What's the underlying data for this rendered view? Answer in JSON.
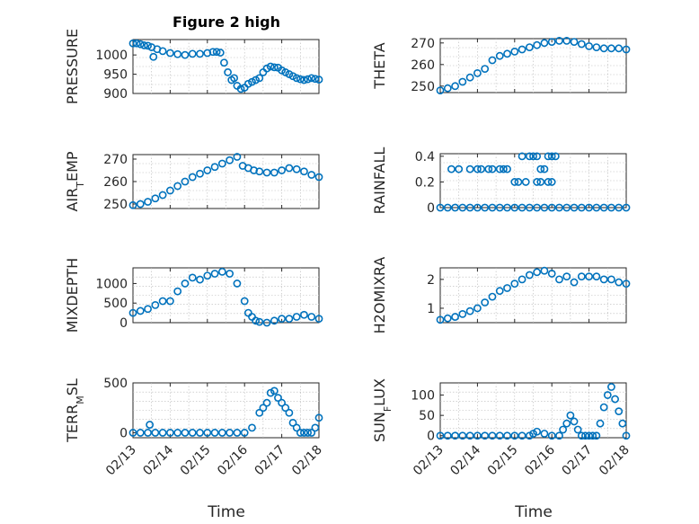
{
  "figure": {
    "title": "Figure 2 high",
    "xlabel": "Time",
    "xtick_labels": [
      "02/13",
      "02/14",
      "02/15",
      "02/16",
      "02/17",
      "02/18"
    ],
    "marker_color": "#0072BD",
    "background": "#ffffff"
  },
  "chart_data": [
    {
      "type": "scatter",
      "id": "pressure",
      "ylabel": "PRESSURE",
      "ylabel_parts": [
        {
          "t": "PRESSURE"
        }
      ],
      "ylim": [
        900,
        1040
      ],
      "yticks": [
        900,
        950,
        1000
      ],
      "xlim": [
        0,
        5
      ],
      "grid": true,
      "x": [
        0.0,
        0.1,
        0.2,
        0.3,
        0.4,
        0.5,
        0.55,
        0.65,
        0.8,
        1.0,
        1.2,
        1.4,
        1.6,
        1.8,
        2.0,
        2.15,
        2.25,
        2.35,
        2.45,
        2.55,
        2.65,
        2.72,
        2.8,
        2.9,
        3.0,
        3.1,
        3.2,
        3.3,
        3.4,
        3.5,
        3.6,
        3.7,
        3.8,
        3.9,
        4.0,
        4.1,
        4.2,
        4.3,
        4.4,
        4.5,
        4.6,
        4.7,
        4.8,
        4.9,
        5.0
      ],
      "y": [
        1030,
        1030,
        1028,
        1025,
        1024,
        1020,
        995,
        1015,
        1010,
        1005,
        1002,
        1000,
        1003,
        1003,
        1005,
        1008,
        1008,
        1006,
        980,
        955,
        935,
        940,
        920,
        912,
        915,
        925,
        930,
        935,
        940,
        955,
        965,
        970,
        968,
        967,
        960,
        955,
        950,
        945,
        940,
        937,
        935,
        937,
        940,
        938,
        936
      ]
    },
    {
      "type": "scatter",
      "id": "theta",
      "ylabel": "THETA",
      "ylabel_parts": [
        {
          "t": "THETA"
        }
      ],
      "ylim": [
        247,
        272
      ],
      "yticks": [
        250,
        260,
        270
      ],
      "xlim": [
        0,
        5
      ],
      "grid": true,
      "x": [
        0.0,
        0.2,
        0.4,
        0.6,
        0.8,
        1.0,
        1.2,
        1.4,
        1.6,
        1.8,
        2.0,
        2.2,
        2.4,
        2.6,
        2.8,
        3.0,
        3.2,
        3.4,
        3.6,
        3.8,
        4.0,
        4.2,
        4.4,
        4.6,
        4.8,
        5.0
      ],
      "y": [
        248,
        249,
        250,
        252,
        254,
        256,
        258,
        262,
        264,
        265,
        266,
        267,
        268,
        269,
        270,
        270.5,
        271,
        271,
        270.5,
        269.5,
        268.5,
        268,
        267.5,
        267.5,
        267.5,
        267
      ]
    },
    {
      "type": "scatter",
      "id": "airtemp",
      "ylabel": "AIR_TEMP",
      "ylabel_parts": [
        {
          "t": "AIR"
        },
        {
          "t": "T",
          "sub": true
        },
        {
          "t": "EMP"
        }
      ],
      "ylim": [
        248,
        272
      ],
      "yticks": [
        250,
        260,
        270
      ],
      "xlim": [
        0,
        5
      ],
      "grid": true,
      "x": [
        0.0,
        0.2,
        0.4,
        0.6,
        0.8,
        1.0,
        1.2,
        1.4,
        1.6,
        1.8,
        2.0,
        2.2,
        2.4,
        2.6,
        2.8,
        2.95,
        3.1,
        3.25,
        3.4,
        3.6,
        3.8,
        4.0,
        4.2,
        4.4,
        4.6,
        4.8,
        5.0
      ],
      "y": [
        249.5,
        250,
        251,
        252.5,
        254,
        256,
        258,
        260,
        262,
        263.5,
        265,
        266.5,
        268,
        269.5,
        271,
        267,
        266,
        265,
        264.5,
        264,
        264,
        265,
        266,
        265.5,
        264.5,
        263,
        262
      ]
    },
    {
      "type": "scatter",
      "id": "rainfall",
      "ylabel": "RAINFALL",
      "ylabel_parts": [
        {
          "t": "RAINFALL"
        }
      ],
      "ylim": [
        0,
        0.42
      ],
      "yticks": [
        0,
        0.2,
        0.4
      ],
      "xlim": [
        0,
        5
      ],
      "grid": true,
      "x": [
        0.0,
        0.2,
        0.4,
        0.6,
        0.8,
        1.0,
        1.2,
        1.4,
        1.6,
        1.8,
        2.0,
        2.2,
        2.4,
        2.6,
        2.8,
        3.0,
        3.2,
        3.4,
        3.6,
        3.8,
        4.0,
        4.2,
        4.4,
        4.6,
        4.8,
        5.0,
        0.3,
        0.5,
        0.8,
        1.0,
        1.1,
        1.3,
        1.4,
        1.6,
        1.7,
        1.8,
        2.0,
        2.1,
        2.3,
        2.6,
        2.7,
        2.9,
        3.0,
        2.2,
        2.4,
        2.5,
        2.6,
        2.7,
        2.8,
        2.9,
        3.0,
        3.1
      ],
      "y": [
        0,
        0,
        0,
        0,
        0,
        0,
        0,
        0,
        0,
        0,
        0,
        0,
        0,
        0,
        0,
        0,
        0,
        0,
        0,
        0,
        0,
        0,
        0,
        0,
        0,
        0,
        0.3,
        0.3,
        0.3,
        0.3,
        0.3,
        0.3,
        0.3,
        0.3,
        0.3,
        0.3,
        0.2,
        0.2,
        0.2,
        0.2,
        0.2,
        0.2,
        0.2,
        0.4,
        0.4,
        0.4,
        0.4,
        0.3,
        0.3,
        0.4,
        0.4,
        0.4
      ]
    },
    {
      "type": "scatter",
      "id": "mixdepth",
      "ylabel": "MIXDEPTH",
      "ylabel_parts": [
        {
          "t": "MIXDEPTH"
        }
      ],
      "ylim": [
        0,
        1400
      ],
      "yticks": [
        0,
        500,
        1000
      ],
      "xlim": [
        0,
        5
      ],
      "grid": true,
      "x": [
        0.0,
        0.2,
        0.4,
        0.6,
        0.8,
        1.0,
        1.2,
        1.4,
        1.6,
        1.8,
        2.0,
        2.2,
        2.4,
        2.6,
        2.8,
        3.0,
        3.1,
        3.2,
        3.3,
        3.4,
        3.6,
        3.8,
        4.0,
        4.2,
        4.4,
        4.6,
        4.8,
        5.0
      ],
      "y": [
        250,
        300,
        350,
        450,
        550,
        550,
        800,
        1000,
        1150,
        1100,
        1200,
        1250,
        1300,
        1250,
        1000,
        550,
        250,
        150,
        50,
        20,
        0,
        50,
        100,
        100,
        150,
        200,
        150,
        100
      ]
    },
    {
      "type": "scatter",
      "id": "h2omixra",
      "ylabel": "H2OMIXRA",
      "ylabel_parts": [
        {
          "t": "H2OMIXRA"
        }
      ],
      "ylim": [
        0.5,
        2.4
      ],
      "yticks": [
        1,
        2
      ],
      "xlim": [
        0,
        5
      ],
      "grid": true,
      "x": [
        0.0,
        0.2,
        0.4,
        0.6,
        0.8,
        1.0,
        1.2,
        1.4,
        1.6,
        1.8,
        2.0,
        2.2,
        2.4,
        2.6,
        2.8,
        3.0,
        3.2,
        3.4,
        3.6,
        3.8,
        4.0,
        4.2,
        4.4,
        4.6,
        4.8,
        5.0
      ],
      "y": [
        0.6,
        0.65,
        0.7,
        0.8,
        0.9,
        1.0,
        1.2,
        1.4,
        1.6,
        1.7,
        1.85,
        2.0,
        2.15,
        2.25,
        2.3,
        2.2,
        2.0,
        2.1,
        1.9,
        2.1,
        2.1,
        2.1,
        2.0,
        2.0,
        1.9,
        1.85
      ]
    },
    {
      "type": "scatter",
      "id": "terrmsl",
      "ylabel": "TERR_MSL",
      "ylabel_parts": [
        {
          "t": "TERR"
        },
        {
          "t": "M",
          "sub": true
        },
        {
          "t": "SL"
        }
      ],
      "ylim": [
        -50,
        500
      ],
      "yticks": [
        0,
        500
      ],
      "xlim": [
        0,
        5
      ],
      "grid": true,
      "x": [
        0.0,
        0.2,
        0.4,
        0.6,
        0.8,
        1.0,
        1.2,
        1.4,
        1.6,
        1.8,
        2.0,
        2.2,
        2.4,
        2.6,
        2.8,
        3.0,
        3.2,
        3.4,
        3.5,
        3.6,
        3.7,
        3.8,
        3.9,
        4.0,
        4.1,
        4.2,
        4.3,
        4.4,
        4.5,
        4.6,
        4.7,
        4.8,
        4.9,
        5.0,
        0.45
      ],
      "y": [
        0,
        0,
        0,
        0,
        0,
        0,
        0,
        0,
        0,
        0,
        0,
        0,
        0,
        0,
        0,
        0,
        50,
        200,
        250,
        300,
        400,
        420,
        350,
        300,
        250,
        200,
        100,
        50,
        0,
        0,
        0,
        0,
        50,
        150,
        80
      ]
    },
    {
      "type": "scatter",
      "id": "sunflux",
      "ylabel": "SUN_FLUX",
      "ylabel_parts": [
        {
          "t": "SUN"
        },
        {
          "t": "F",
          "sub": true
        },
        {
          "t": "LUX"
        }
      ],
      "ylim": [
        -5,
        130
      ],
      "yticks": [
        0,
        50,
        100
      ],
      "xlim": [
        0,
        5
      ],
      "grid": true,
      "x": [
        0.0,
        0.2,
        0.4,
        0.6,
        0.8,
        1.0,
        1.2,
        1.4,
        1.6,
        1.8,
        2.0,
        2.2,
        2.4,
        2.5,
        2.6,
        2.8,
        3.0,
        3.2,
        3.3,
        3.4,
        3.5,
        3.6,
        3.7,
        3.8,
        3.9,
        4.0,
        4.1,
        4.2,
        4.3,
        4.4,
        4.5,
        4.6,
        4.7,
        4.8,
        4.9,
        5.0
      ],
      "y": [
        0,
        0,
        0,
        0,
        0,
        0,
        0,
        0,
        0,
        0,
        0,
        0,
        0,
        5,
        10,
        5,
        0,
        0,
        15,
        30,
        50,
        35,
        15,
        0,
        0,
        0,
        0,
        0,
        30,
        70,
        100,
        120,
        90,
        60,
        30,
        0
      ]
    }
  ]
}
